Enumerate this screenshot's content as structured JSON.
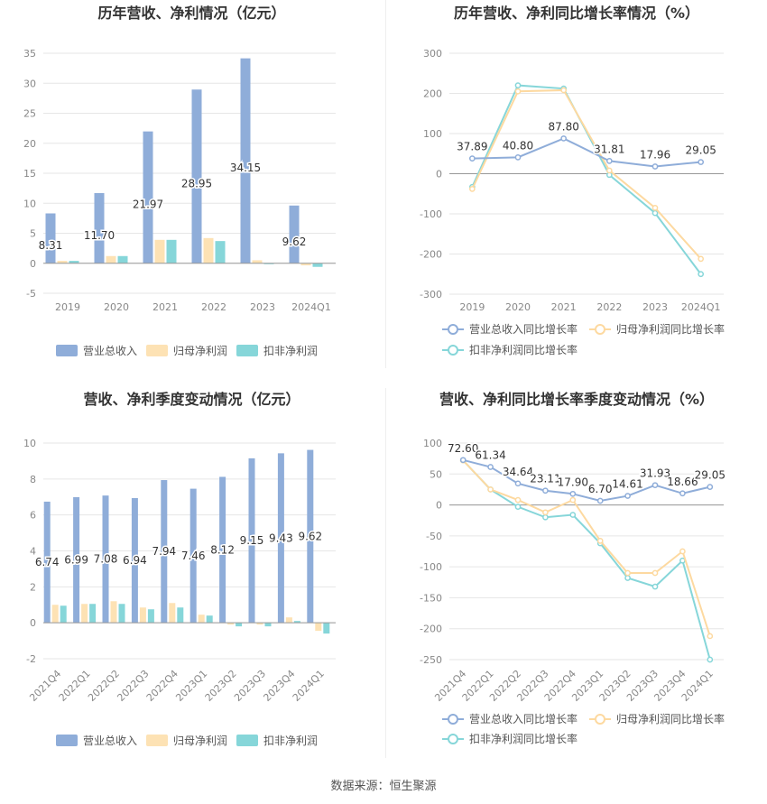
{
  "colors": {
    "revenue": "#8fadd9",
    "net_profit": "#fde2b4",
    "deducted_profit": "#86d6d9",
    "revenue_line": "#8fadd9",
    "net_line": "#fdd9a0",
    "deducted_line": "#86d6d9",
    "grid": "#e6e6e6",
    "axis_text": "#888888",
    "title": "#333333"
  },
  "source": "数据来源：恒生聚源",
  "chart_data": [
    {
      "id": "annual_amount",
      "type": "bar",
      "title": "历年营收、净利情况（亿元）",
      "categories": [
        "2019",
        "2020",
        "2021",
        "2022",
        "2023",
        "2024Q1"
      ],
      "ylim": [
        -5,
        35
      ],
      "yticks": [
        -5,
        0,
        5,
        10,
        15,
        20,
        25,
        30,
        35
      ],
      "grid": true,
      "legend_position": "bottom",
      "series": [
        {
          "name": "营业总收入",
          "values": [
            8.31,
            11.7,
            21.97,
            28.95,
            34.15,
            9.62
          ],
          "labels": [
            "8.31",
            "11.70",
            "21.97",
            "28.95",
            "34.15",
            "9.62"
          ]
        },
        {
          "name": "归母净利润",
          "values": [
            0.4,
            1.2,
            3.9,
            4.2,
            0.5,
            -0.35
          ]
        },
        {
          "name": "扣非净利润",
          "values": [
            0.4,
            1.2,
            3.9,
            3.7,
            0.0,
            -0.6
          ]
        }
      ]
    },
    {
      "id": "annual_growth",
      "type": "line",
      "title": "历年营收、净利同比增长率情况（%）",
      "categories": [
        "2019",
        "2020",
        "2021",
        "2022",
        "2023",
        "2024Q1"
      ],
      "ylim": [
        -300,
        300
      ],
      "yticks": [
        -300,
        -200,
        -100,
        0,
        100,
        200,
        300
      ],
      "grid": true,
      "legend_position": "bottom",
      "series": [
        {
          "name": "营业总收入同比增长率",
          "values": [
            37.89,
            40.8,
            87.8,
            31.81,
            17.96,
            29.05
          ],
          "labels": [
            "37.89",
            "40.80",
            "87.80",
            "31.81",
            "17.96",
            "29.05"
          ]
        },
        {
          "name": "归母净利润同比增长率",
          "values": [
            -38,
            205,
            208,
            8,
            -85,
            -212
          ]
        },
        {
          "name": "扣非净利润同比增长率",
          "values": [
            -33,
            220,
            212,
            -3,
            -98,
            -250
          ]
        }
      ]
    },
    {
      "id": "quarterly_amount",
      "type": "bar",
      "title": "营收、净利季度变动情况（亿元）",
      "categories": [
        "2021Q4",
        "2022Q1",
        "2022Q2",
        "2022Q3",
        "2022Q4",
        "2023Q1",
        "2023Q2",
        "2023Q3",
        "2023Q4",
        "2024Q1"
      ],
      "ylim": [
        -2,
        10
      ],
      "yticks": [
        -2,
        0,
        2,
        4,
        6,
        8,
        10
      ],
      "grid": true,
      "legend_position": "bottom",
      "series": [
        {
          "name": "营业总收入",
          "values": [
            6.74,
            6.99,
            7.08,
            6.94,
            7.94,
            7.46,
            8.12,
            9.15,
            9.43,
            9.62
          ],
          "labels": [
            "6.74",
            "6.99",
            "7.08",
            "6.94",
            "7.94",
            "7.46",
            "8.12",
            "9.15",
            "9.43",
            "9.62"
          ]
        },
        {
          "name": "归母净利润",
          "values": [
            1.0,
            1.05,
            1.2,
            0.85,
            1.1,
            0.45,
            -0.1,
            -0.1,
            0.3,
            -0.45
          ]
        },
        {
          "name": "扣非净利润",
          "values": [
            0.95,
            1.05,
            1.05,
            0.75,
            0.85,
            0.4,
            -0.2,
            -0.2,
            0.1,
            -0.6
          ]
        }
      ]
    },
    {
      "id": "quarterly_growth",
      "type": "line",
      "title": "营收、净利同比增长率季度变动情况（%）",
      "categories": [
        "2021Q4",
        "2022Q1",
        "2022Q2",
        "2022Q3",
        "2022Q4",
        "2023Q1",
        "2023Q2",
        "2023Q3",
        "2023Q4",
        "2024Q1"
      ],
      "ylim": [
        -250,
        100
      ],
      "yticks": [
        -250,
        -200,
        -150,
        -100,
        -50,
        0,
        50,
        100
      ],
      "grid": true,
      "legend_position": "bottom",
      "series": [
        {
          "name": "营业总收入同比增长率",
          "values": [
            72.6,
            61.34,
            34.64,
            23.11,
            17.9,
            6.7,
            14.61,
            31.93,
            18.66,
            29.05
          ],
          "labels": [
            "72.60",
            "61.34",
            "34.64",
            "23.11",
            "17.90",
            "6.70",
            "14.61",
            "31.93",
            "18.66",
            "29.05"
          ]
        },
        {
          "name": "归母净利润同比增长率",
          "values": [
            72,
            25,
            8,
            -12,
            8,
            -58,
            -110,
            -110,
            -75,
            -212
          ]
        },
        {
          "name": "扣非净利润同比增长率",
          "values": [
            72,
            25,
            -3,
            -20,
            -16,
            -62,
            -118,
            -132,
            -90,
            -250
          ]
        }
      ]
    }
  ]
}
